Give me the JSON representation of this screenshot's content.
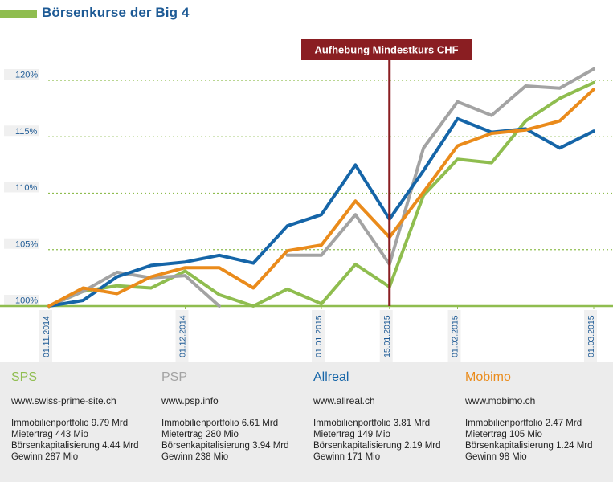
{
  "title": "Börsenkurse der Big 4",
  "colors": {
    "title": "#1d5a95",
    "accent_green": "#8fbd4f",
    "annotation": "#8a1e22"
  },
  "chart_data": {
    "type": "line",
    "annotation": {
      "label": "Aufhebung Mindestkurs CHF",
      "date": "15.01.2015"
    },
    "ylim": [
      100,
      121
    ],
    "yticks": [
      {
        "value": 100,
        "label": "100%"
      },
      {
        "value": 105,
        "label": "105%"
      },
      {
        "value": 110,
        "label": "110%"
      },
      {
        "value": 115,
        "label": "115%"
      },
      {
        "value": 120,
        "label": "120%"
      }
    ],
    "xticks": [
      {
        "index": 0,
        "label": "01.11.2014"
      },
      {
        "index": 4,
        "label": "01.12.2014"
      },
      {
        "index": 8,
        "label": "01.01.2015"
      },
      {
        "index": 10,
        "label": "15.01.2015"
      },
      {
        "index": 12,
        "label": "01.02.2015"
      },
      {
        "index": 16,
        "label": "01.03.2015"
      }
    ],
    "x_count": 17,
    "grid": true,
    "series": [
      {
        "name": "SPS",
        "color": "#8fbd4f",
        "values": [
          100,
          101.3,
          101.8,
          101.6,
          103.1,
          101,
          100,
          101.5,
          100.2,
          103.7,
          101.7,
          109.8,
          113,
          112.7,
          116.4,
          118.4,
          119.8
        ]
      },
      {
        "name": "PSP",
        "color": "#a3a3a3",
        "values": [
          100,
          101.3,
          103,
          102.5,
          102.7,
          100,
          null,
          104.5,
          104.5,
          108.1,
          103.7,
          114,
          118.1,
          116.9,
          119.5,
          119.3,
          121
        ]
      },
      {
        "name": "Allreal",
        "color": "#1565a8",
        "values": [
          100,
          100.5,
          102.6,
          103.6,
          103.9,
          104.5,
          103.8,
          107.1,
          108.1,
          112.5,
          107.7,
          112,
          116.6,
          115.4,
          115.7,
          114,
          115.5
        ]
      },
      {
        "name": "Mobimo",
        "color": "#ea8b1b",
        "values": [
          100,
          101.6,
          101.1,
          102.6,
          103.4,
          103.4,
          101.6,
          104.9,
          105.4,
          109.3,
          106.1,
          110.1,
          114.2,
          115.3,
          115.6,
          116.4,
          119.2
        ]
      }
    ]
  },
  "companies": [
    {
      "name": "SPS",
      "color": "#8fbd4f",
      "url": "www.swiss-prime-site.ch",
      "facts": [
        "Immobilienportfolio 9.79 Mrd",
        "Mietertrag 443 Mio",
        "Börsenkapitalisierung 4.44 Mrd",
        "Gewinn 287 Mio"
      ]
    },
    {
      "name": "PSP",
      "color": "#a3a3a3",
      "url": "www.psp.info",
      "facts": [
        "Immobilienportfolio 6.61 Mrd",
        "Mietertrag 280 Mio",
        "Börsenkapitalisierung 3.94 Mrd",
        "Gewinn 238 Mio"
      ]
    },
    {
      "name": "Allreal",
      "color": "#1565a8",
      "url": "www.allreal.ch",
      "facts": [
        "Immobilienportfolio 3.81 Mrd",
        "Mietertrag 149 Mio",
        "Börsenkapitalisierung 2.19 Mrd",
        "Gewinn 171 Mio"
      ]
    },
    {
      "name": "Mobimo",
      "color": "#ea8b1b",
      "url": "www.mobimo.ch",
      "facts": [
        "Immobilienportfolio 2.47 Mrd",
        "Mietertrag 105 Mio",
        "Börsenkapitalisierung 1.24 Mrd",
        "Gewinn 98 Mio"
      ]
    }
  ]
}
